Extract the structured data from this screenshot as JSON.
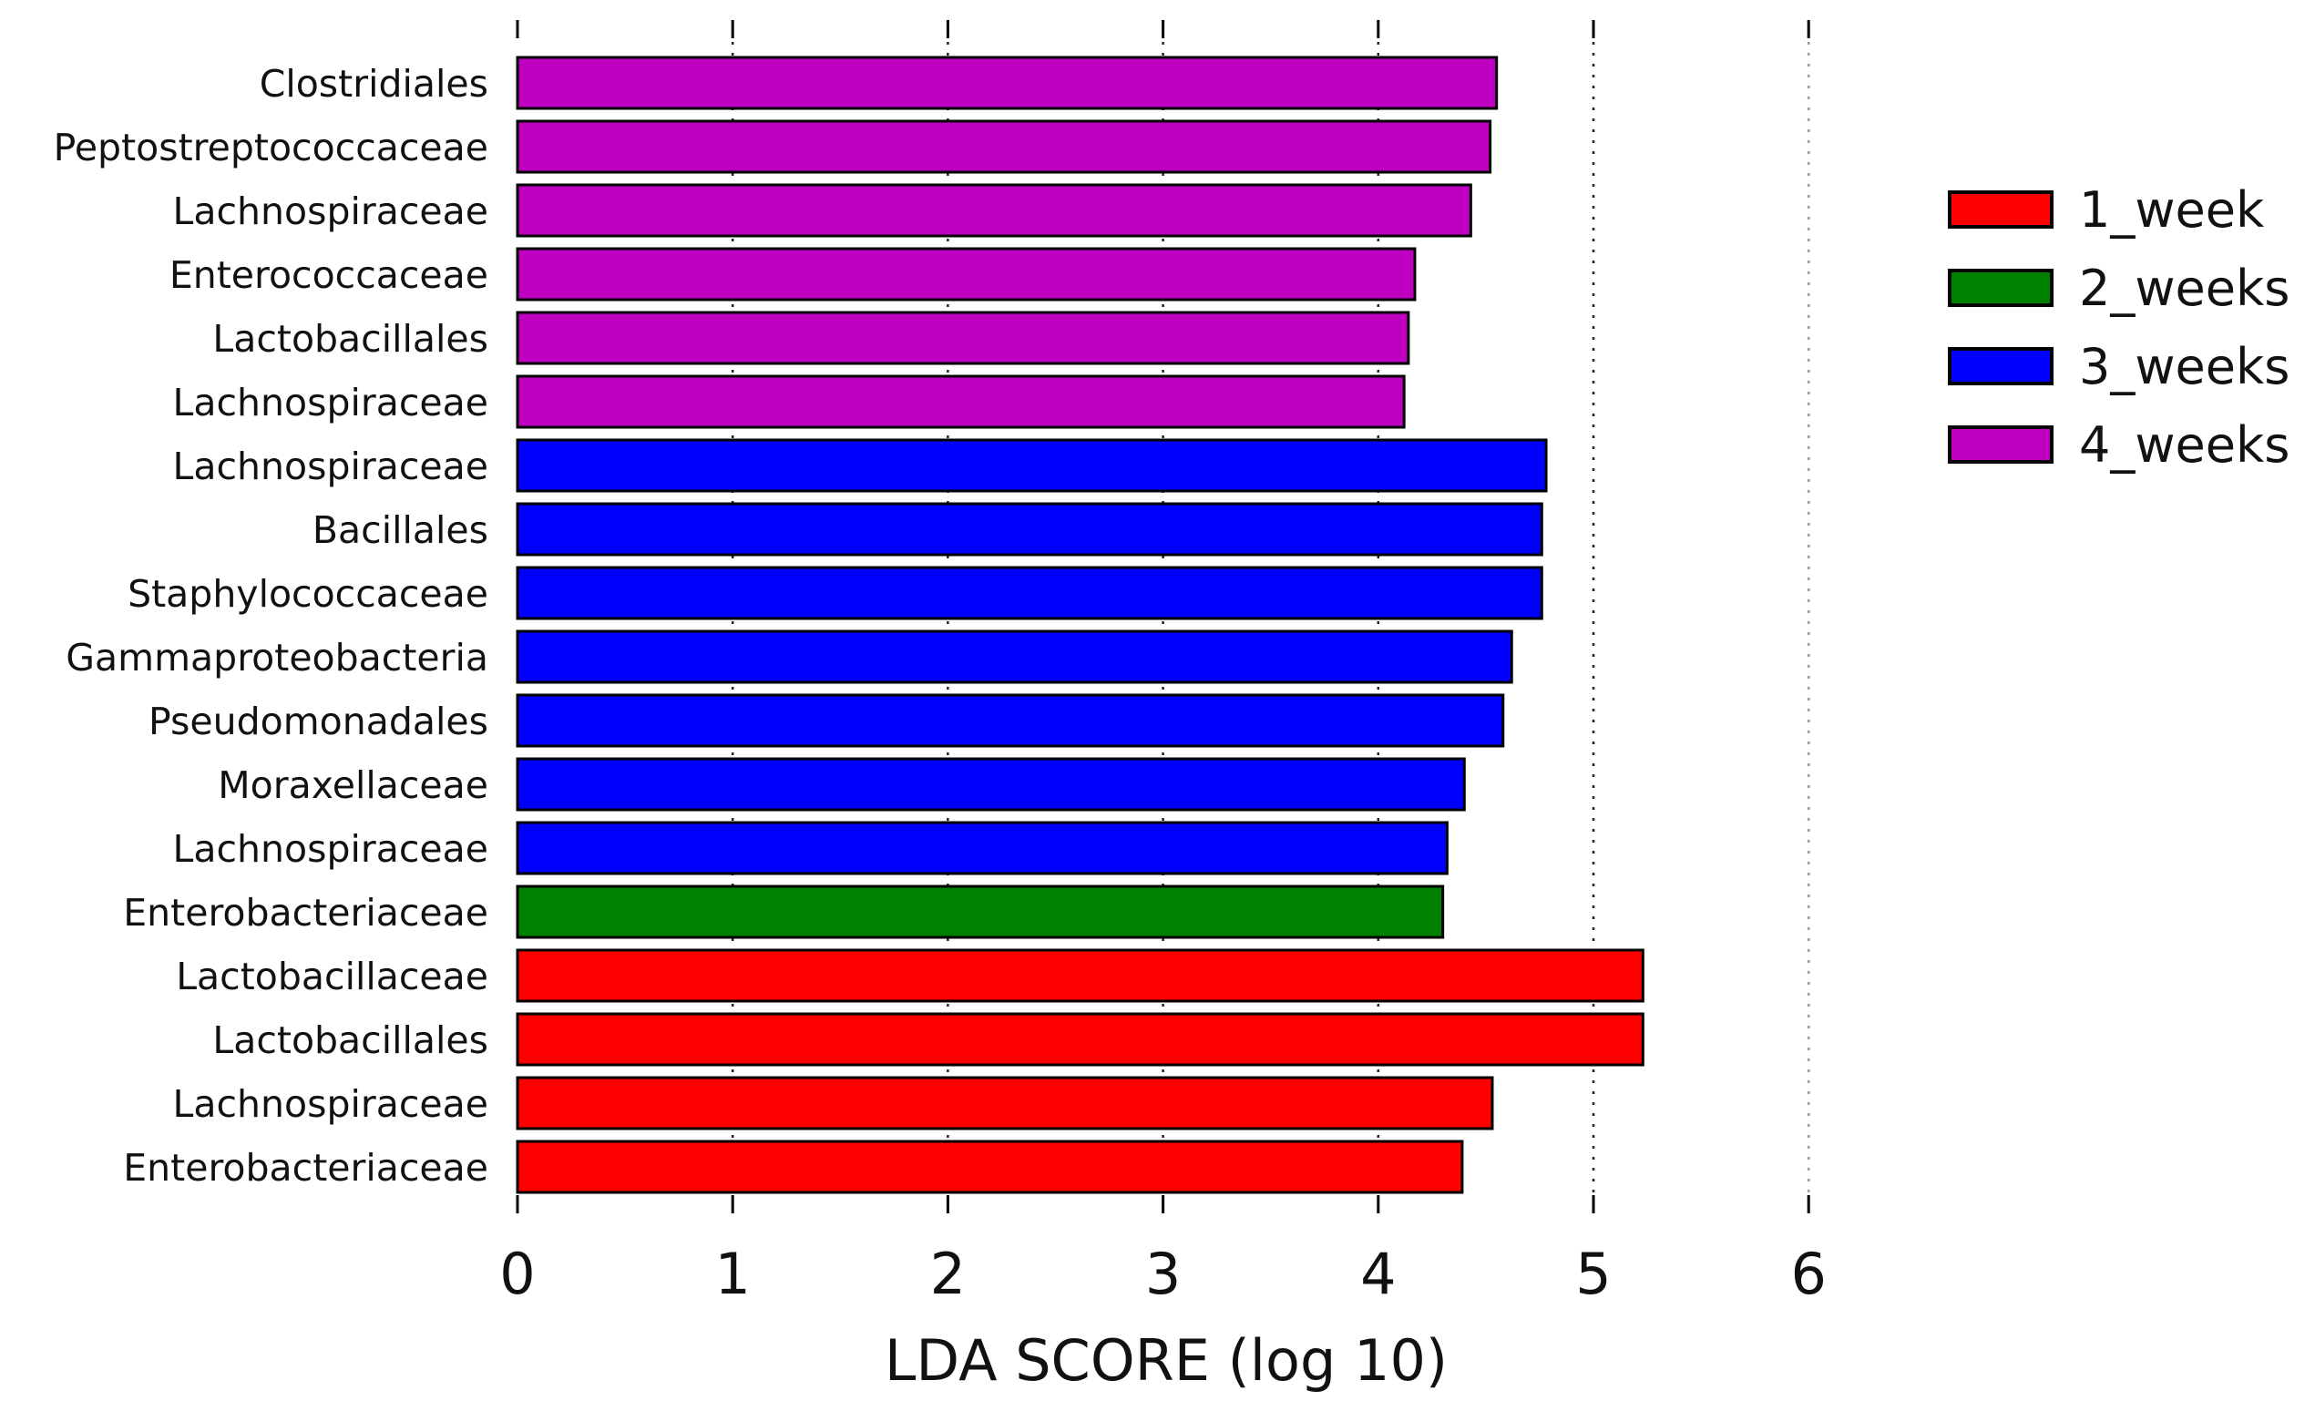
{
  "chart_data": {
    "type": "bar",
    "orientation": "horizontal",
    "xlabel": "LDA SCORE (log 10)",
    "ylabel": "",
    "xlim": [
      0,
      6
    ],
    "xticks": [
      "0",
      "1",
      "2",
      "3",
      "4",
      "5",
      "6"
    ],
    "grid": "vertical dotted lines at x = 1 … 6",
    "legend_position": "right",
    "groups": [
      {
        "name": "1_week",
        "color": "#ff0000"
      },
      {
        "name": "2_weeks",
        "color": "#008000"
      },
      {
        "name": "3_weeks",
        "color": "#0000ff"
      },
      {
        "name": "4_weeks",
        "color": "#c000c0"
      }
    ],
    "bars": [
      {
        "label": "Clostridiales",
        "value": 4.55,
        "group": "4_weeks"
      },
      {
        "label": "Peptostreptococcaceae",
        "value": 4.52,
        "group": "4_weeks"
      },
      {
        "label": "Lachnospiraceae",
        "value": 4.43,
        "group": "4_weeks"
      },
      {
        "label": "Enterococcaceae",
        "value": 4.17,
        "group": "4_weeks"
      },
      {
        "label": "Lactobacillales",
        "value": 4.14,
        "group": "4_weeks"
      },
      {
        "label": "Lachnospiraceae",
        "value": 4.12,
        "group": "4_weeks"
      },
      {
        "label": "Lachnospiraceae",
        "value": 4.78,
        "group": "3_weeks"
      },
      {
        "label": "Bacillales",
        "value": 4.76,
        "group": "3_weeks"
      },
      {
        "label": "Staphylococcaceae",
        "value": 4.76,
        "group": "3_weeks"
      },
      {
        "label": "Gammaproteobacteria",
        "value": 4.62,
        "group": "3_weeks"
      },
      {
        "label": "Pseudomonadales",
        "value": 4.58,
        "group": "3_weeks"
      },
      {
        "label": "Moraxellaceae",
        "value": 4.4,
        "group": "3_weeks"
      },
      {
        "label": "Lachnospiraceae",
        "value": 4.32,
        "group": "3_weeks"
      },
      {
        "label": "Enterobacteriaceae",
        "value": 4.3,
        "group": "2_weeks"
      },
      {
        "label": "Lactobacillaceae",
        "value": 5.23,
        "group": "1_week"
      },
      {
        "label": "Lactobacillales",
        "value": 5.23,
        "group": "1_week"
      },
      {
        "label": "Lachnospiraceae",
        "value": 4.53,
        "group": "1_week"
      },
      {
        "label": "Enterobacteriaceae",
        "value": 4.39,
        "group": "1_week"
      }
    ]
  }
}
